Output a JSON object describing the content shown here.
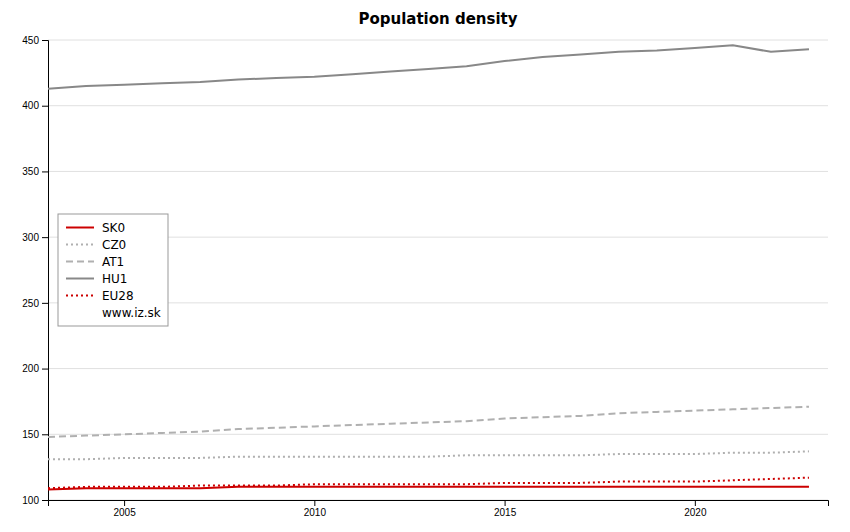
{
  "chart_data": {
    "type": "line",
    "title": "Population density",
    "x": [
      2003,
      2004,
      2005,
      2006,
      2007,
      2008,
      2009,
      2010,
      2011,
      2012,
      2013,
      2014,
      2015,
      2016,
      2017,
      2018,
      2019,
      2020,
      2021,
      2022,
      2023
    ],
    "series": [
      {
        "name": "SK0",
        "color": "#cc0000",
        "line_style": "solid",
        "values": [
          108,
          109,
          109,
          109,
          109,
          110,
          110,
          110,
          110,
          110,
          110,
          110,
          110,
          110,
          110,
          110,
          110,
          110,
          110,
          110,
          110
        ]
      },
      {
        "name": "CZ0",
        "color": "#b0b0b0",
        "line_style": "dotted",
        "values": [
          131,
          131,
          132,
          132,
          132,
          133,
          133,
          133,
          133,
          133,
          133,
          134,
          134,
          134,
          134,
          135,
          135,
          135,
          136,
          136,
          137
        ]
      },
      {
        "name": "AT1",
        "color": "#b0b0b0",
        "line_style": "dashed",
        "values": [
          148,
          149,
          150,
          151,
          152,
          154,
          155,
          156,
          157,
          158,
          159,
          160,
          162,
          163,
          164,
          166,
          167,
          168,
          169,
          170,
          171
        ]
      },
      {
        "name": "HU1",
        "color": "#888888",
        "line_style": "solid",
        "values": [
          413,
          415,
          416,
          417,
          418,
          420,
          421,
          422,
          424,
          426,
          428,
          430,
          434,
          437,
          439,
          441,
          442,
          444,
          446,
          441,
          443
        ]
      },
      {
        "name": "EU28",
        "color": "#cc0000",
        "line_style": "dotted",
        "values": [
          109,
          110,
          110,
          110,
          111,
          111,
          111,
          112,
          112,
          112,
          112,
          112,
          113,
          113,
          113,
          114,
          114,
          114,
          115,
          116,
          117
        ]
      }
    ],
    "annotations": [
      {
        "text": "www.iz.sk"
      }
    ],
    "xlim": [
      2003.0,
      2023.5
    ],
    "xticks": [
      2005,
      2010,
      2015,
      2020
    ],
    "ylim": [
      100,
      450
    ],
    "yticks": [
      100,
      150,
      200,
      250,
      300,
      350,
      400,
      450
    ],
    "grid": true,
    "legend": "left"
  }
}
